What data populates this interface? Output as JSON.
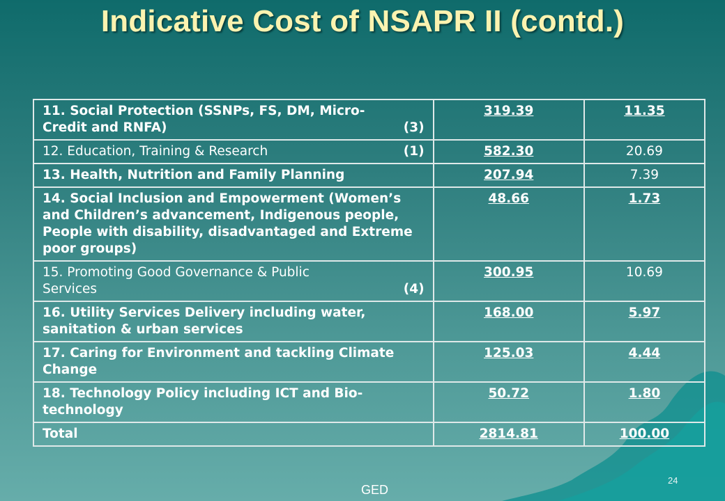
{
  "title": "Indicative Cost of NSAPR II (contd.)",
  "rows": [
    {
      "label": "11. Social Protection (SSNPs, FS, DM, Micro-Credit and RNFA)",
      "note": "(3)",
      "v1": "319.39",
      "v2": "11.35"
    },
    {
      "label": "12. Education, Training & Research",
      "note": "(1)",
      "v1": "582.30",
      "v2": "20.69"
    },
    {
      "label": "13. Health, Nutrition and Family Planning",
      "note": "",
      "v1": "207.94",
      "v2": "7.39"
    },
    {
      "label": "14. Social Inclusion and Empowerment (Women’s and Children’s advancement, Indigenous people, People with disability, disadvantaged and Extreme poor groups)",
      "note": "",
      "v1": "48.66",
      "v2": "1.73"
    },
    {
      "label": "15. Promoting Good Governance & Public Services",
      "note": "(4)",
      "v1": "300.95",
      "v2": "10.69"
    },
    {
      "label": "16. Utility Services Delivery including water, sanitation & urban services",
      "note": "",
      "v1": "168.00",
      "v2": "5.97"
    },
    {
      "label": "17. Caring for Environment and tackling Climate Change",
      "note": "",
      "v1": "125.03",
      "v2": "4.44"
    },
    {
      "label": "18. Technology Policy including ICT and Bio-technology",
      "note": "",
      "v1": "50.72",
      "v2": "1.80"
    },
    {
      "label": "Total",
      "note": "",
      "v1": "2814.81",
      "v2": "100.00"
    }
  ],
  "row1_line1": "11. Social Protection (SSNPs, FS, DM, Micro-",
  "row1_line2": "Credit and RNFA)",
  "row5_line1": "15. Promoting Good Governance & Public",
  "row5_line2": "Services",
  "footer": "GED",
  "page_number": "24"
}
